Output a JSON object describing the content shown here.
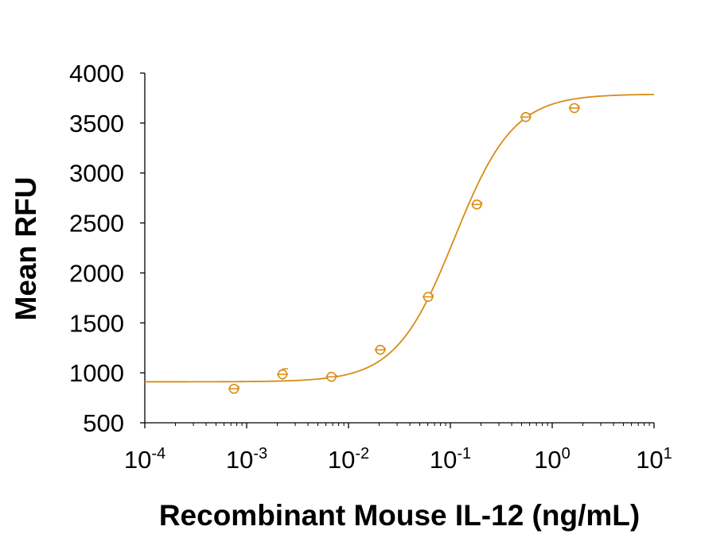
{
  "chart_data": {
    "type": "scatter",
    "title": "",
    "xlabel": "Recombinant Mouse IL-12 (ng/mL)",
    "ylabel": "Mean RFU",
    "x_scale": "log",
    "xlim": [
      0.0001,
      10
    ],
    "ylim": [
      500,
      4000
    ],
    "grid": false,
    "y_ticks": [
      500,
      1000,
      1500,
      2000,
      2500,
      3000,
      3500,
      4000
    ],
    "x_ticks": [
      {
        "base": "10",
        "exp": "-4",
        "value": 0.0001
      },
      {
        "base": "10",
        "exp": "-3",
        "value": 0.001
      },
      {
        "base": "10",
        "exp": "-2",
        "value": 0.01
      },
      {
        "base": "10",
        "exp": "-1",
        "value": 0.1
      },
      {
        "base": "10",
        "exp": "0",
        "value": 1
      },
      {
        "base": "10",
        "exp": "1",
        "value": 10
      }
    ],
    "series": [
      {
        "color": "#d88c14",
        "points": [
          {
            "x": 0.00075,
            "y": 840,
            "err": 20
          },
          {
            "x": 0.00225,
            "y": 985,
            "err": 55
          },
          {
            "x": 0.0068,
            "y": 960,
            "err": 15
          },
          {
            "x": 0.0205,
            "y": 1230,
            "err": 15
          },
          {
            "x": 0.0605,
            "y": 1760,
            "err": 20
          },
          {
            "x": 0.182,
            "y": 2685,
            "err": 20
          },
          {
            "x": 0.55,
            "y": 3560,
            "err": 30
          },
          {
            "x": 1.65,
            "y": 3650,
            "err": 20
          }
        ],
        "fit": {
          "model": "4PL",
          "bottom": 910,
          "top": 3790,
          "ec50": 0.11,
          "hill": 1.5
        }
      }
    ]
  }
}
